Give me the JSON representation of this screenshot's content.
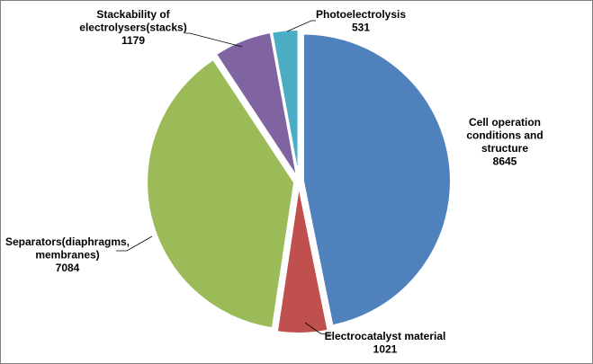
{
  "chart_data": {
    "type": "pie",
    "title": "",
    "series": [
      {
        "categories": [
          "Cell operation conditions and structure",
          "Electrocatalyst material",
          "Separators(diaphragms, membranes)",
          "Stackability of electrolysers(stacks)",
          "Photoelectrolysis"
        ],
        "values": [
          8645,
          1021,
          7084,
          1179,
          531
        ]
      }
    ],
    "colors": [
      "#4f81bd",
      "#c0504d",
      "#9bbb59",
      "#8064a2",
      "#4bacc6"
    ],
    "data_labels": [
      {
        "lines": [
          "Cell operation",
          "conditions and",
          "structure"
        ],
        "value": "8645"
      },
      {
        "lines": [
          "Electrocatalyst material"
        ],
        "value": "1021"
      },
      {
        "lines": [
          "Separators(diaphragms,",
          "membranes)"
        ],
        "value": "7084"
      },
      {
        "lines": [
          "Stackability of",
          "electrolysers(stacks)"
        ],
        "value": "1179"
      },
      {
        "lines": [
          "Photoelectrolysis"
        ],
        "value": "531"
      }
    ],
    "legend": "none",
    "exploded": true
  }
}
